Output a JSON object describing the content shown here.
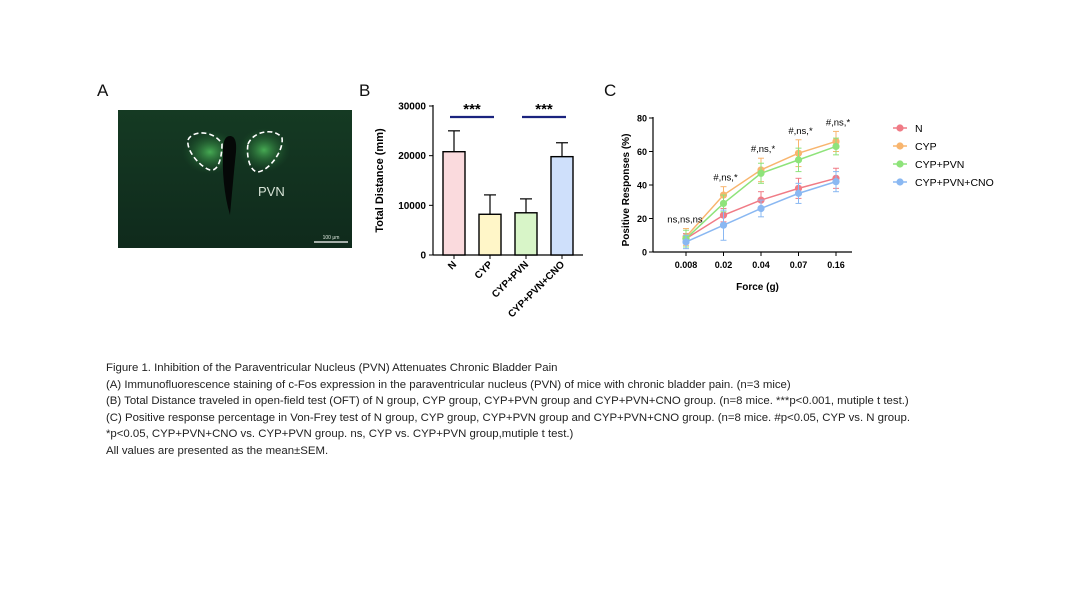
{
  "panels": {
    "a": "A",
    "b": "B",
    "c": "C"
  },
  "micrograph": {
    "region_label": "PVN",
    "scale_bar_label": "100 μm"
  },
  "chart_data": [
    {
      "id": "B",
      "type": "bar",
      "categories": [
        "N",
        "CYP",
        "CYP+PVN",
        "CYP+PVN+CNO"
      ],
      "values": [
        20800,
        8200,
        8500,
        19800
      ],
      "errors": [
        4200,
        3900,
        2800,
        2800
      ],
      "colors": [
        "#fadadd",
        "#fff6c8",
        "#d8f5c8",
        "#cfe0fb"
      ],
      "ylabel": "Total Distance (mm)",
      "ylim": [
        0,
        30000
      ],
      "yticks": [
        "0",
        "10000",
        "20000",
        "30000"
      ],
      "significance": [
        {
          "from": 0,
          "to": 1,
          "label": "***"
        },
        {
          "from": 2,
          "to": 3,
          "label": "***"
        }
      ],
      "significance_color": "#1a237e"
    },
    {
      "id": "C",
      "type": "line",
      "categories": [
        "0.008",
        "0.02",
        "0.04",
        "0.07",
        "0.16"
      ],
      "xlabel": "Force (g)",
      "ylabel": "Positive Responses (%)",
      "ylim": [
        0,
        80
      ],
      "yticks": [
        "0",
        "20",
        "40",
        "60",
        "80"
      ],
      "series": [
        {
          "name": "N",
          "color": "#f07b86",
          "values": [
            8,
            22,
            31,
            38,
            44
          ],
          "errors": [
            3,
            4,
            5,
            6,
            6
          ]
        },
        {
          "name": "CYP",
          "color": "#f8b56e",
          "values": [
            9,
            34,
            49,
            59,
            66
          ],
          "errors": [
            5,
            5,
            7,
            8,
            6
          ]
        },
        {
          "name": "CYP+PVN",
          "color": "#8ee37a",
          "values": [
            8,
            29,
            47,
            55,
            63
          ],
          "errors": [
            5,
            5,
            6,
            7,
            5
          ]
        },
        {
          "name": "CYP+PVN+CNO",
          "color": "#8ab8f2",
          "values": [
            6,
            16,
            26,
            35,
            42
          ],
          "errors": [
            4,
            9,
            5,
            6,
            6
          ]
        }
      ],
      "annotations": [
        "ns,ns,ns",
        "#,ns,*",
        "#,ns,*",
        "#,ns,*",
        "#,ns,*"
      ]
    }
  ],
  "caption": {
    "line1": "Figure 1. Inhibition of the Paraventricular Nucleus (PVN) Attenuates Chronic Bladder Pain",
    "line2": "(A) Immunofluorescence staining of c-Fos expression in the paraventricular nucleus (PVN) of mice with chronic bladder pain. (n=3 mice)",
    "line3": "(B) Total Distance traveled in open-field test (OFT) of N group, CYP group, CYP+PVN group and CYP+PVN+CNO group. (n=8 mice. ***p<0.001, mutiple t test.)",
    "line4": "(C) Positive response percentage in Von-Frey test of N group, CYP group, CYP+PVN group and CYP+PVN+CNO group. (n=8 mice. #p<0.05, CYP vs. N group.",
    "line5": "*p<0.05, CYP+PVN+CNO vs. CYP+PVN group. ns, CYP vs. CYP+PVN group,mutiple t test.)",
    "line6": "All values are presented as the mean±SEM."
  }
}
